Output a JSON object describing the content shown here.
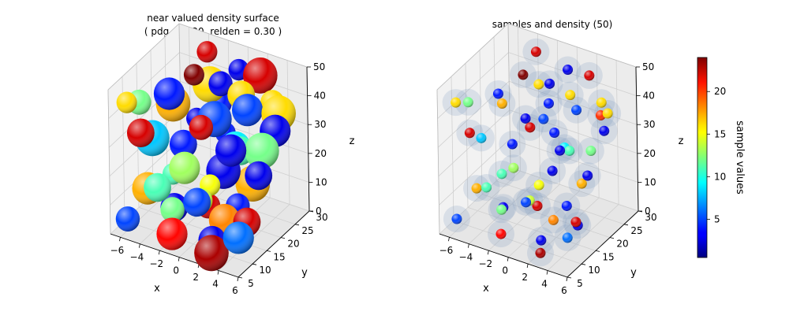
{
  "chart_data": [
    {
      "type": "scatter3d-surface",
      "title_line1": "near valued density surface",
      "title_line2": "( pdg = 1.20, relden = 0.30 )",
      "xlabel": "x",
      "ylabel": "y",
      "zlabel": "z",
      "xlim": [
        -7,
        6
      ],
      "ylim": [
        5,
        30
      ],
      "zlim": [
        0,
        50
      ],
      "xticks": [
        "−6",
        "−4",
        "−2",
        "0",
        "2",
        "4",
        "6"
      ],
      "yticks": [
        "5",
        "10",
        "15",
        "20",
        "25",
        "30"
      ],
      "zticks": [
        "0",
        "10",
        "20",
        "30",
        "40",
        "50"
      ],
      "grid": true
    },
    {
      "type": "scatter3d",
      "title": "samples and density (50)",
      "xlabel": "x",
      "ylabel": "y",
      "zlabel": "z",
      "xlim": [
        -7,
        6
      ],
      "ylim": [
        5,
        30
      ],
      "zlim": [
        0,
        50
      ],
      "xticks": [
        "−6",
        "−4",
        "−2",
        "0",
        "2",
        "4",
        "6"
      ],
      "yticks": [
        "5",
        "10",
        "15",
        "20",
        "25",
        "30"
      ],
      "zticks": [
        "0",
        "10",
        "20",
        "30",
        "40",
        "50"
      ],
      "grid": true,
      "colormap": "jet",
      "points": [
        {
          "x": -6.0,
          "y": 8,
          "z": 44,
          "v": 16
        },
        {
          "x": -6.5,
          "y": 14,
          "z": 38,
          "v": 12
        },
        {
          "x": -5.8,
          "y": 12,
          "z": 30,
          "v": 22
        },
        {
          "x": -4.0,
          "y": 16,
          "z": 42,
          "v": 4
        },
        {
          "x": -4.8,
          "y": 20,
          "z": 34,
          "v": 17
        },
        {
          "x": -3.2,
          "y": 22,
          "z": 44,
          "v": 24
        },
        {
          "x": -5.5,
          "y": 6,
          "z": 6,
          "v": 5
        },
        {
          "x": -3.0,
          "y": 8,
          "z": 18,
          "v": 11
        },
        {
          "x": -4.6,
          "y": 10,
          "z": 14,
          "v": 17
        },
        {
          "x": -6.4,
          "y": 18,
          "z": 22,
          "v": 8
        },
        {
          "x": -2.0,
          "y": 10,
          "z": 22,
          "v": 11
        },
        {
          "x": -1.5,
          "y": 8,
          "z": 12,
          "v": 12
        },
        {
          "x": -2.5,
          "y": 12,
          "z": 8,
          "v": 3
        },
        {
          "x": -1.0,
          "y": 6,
          "z": 6,
          "v": 21
        },
        {
          "x": 0.0,
          "y": 18,
          "z": 36,
          "v": 5
        },
        {
          "x": 0.5,
          "y": 20,
          "z": 30,
          "v": 4
        },
        {
          "x": -0.5,
          "y": 22,
          "z": 44,
          "v": 3
        },
        {
          "x": 1.0,
          "y": 24,
          "z": 40,
          "v": 16
        },
        {
          "x": 1.5,
          "y": 20,
          "z": 26,
          "v": 9
        },
        {
          "x": 2.0,
          "y": 14,
          "z": 24,
          "v": 3
        },
        {
          "x": 1.2,
          "y": 12,
          "z": 20,
          "v": 15
        },
        {
          "x": 0.8,
          "y": 10,
          "z": 16,
          "v": 14
        },
        {
          "x": 2.5,
          "y": 8,
          "z": 6,
          "v": 3
        },
        {
          "x": 3.2,
          "y": 10,
          "z": 12,
          "v": 18
        },
        {
          "x": 3.0,
          "y": 6,
          "z": 4,
          "v": 23
        },
        {
          "x": 4.5,
          "y": 14,
          "z": 8,
          "v": 3
        },
        {
          "x": 4.0,
          "y": 12,
          "z": 16,
          "v": 4
        },
        {
          "x": 5.0,
          "y": 16,
          "z": 24,
          "v": 3
        },
        {
          "x": 5.0,
          "y": 22,
          "z": 34,
          "v": 3
        },
        {
          "x": 4.8,
          "y": 24,
          "z": 38,
          "v": 16
        },
        {
          "x": 3.5,
          "y": 26,
          "z": 34,
          "v": 20
        },
        {
          "x": 3.0,
          "y": 28,
          "z": 36,
          "v": 16
        },
        {
          "x": 5.5,
          "y": 10,
          "z": 14,
          "v": 22
        },
        {
          "x": 5.2,
          "y": 8,
          "z": 10,
          "v": 6
        },
        {
          "x": 1.8,
          "y": 28,
          "z": 44,
          "v": 22
        },
        {
          "x": 0.2,
          "y": 26,
          "z": 46,
          "v": 3
        },
        {
          "x": -0.8,
          "y": 16,
          "z": 34,
          "v": 22
        },
        {
          "x": 2.6,
          "y": 18,
          "z": 28,
          "v": 11
        },
        {
          "x": 2.2,
          "y": 22,
          "z": 38,
          "v": 5
        },
        {
          "x": -2.2,
          "y": 24,
          "z": 40,
          "v": 16
        },
        {
          "x": -3.6,
          "y": 28,
          "z": 46,
          "v": 22
        },
        {
          "x": -1.8,
          "y": 26,
          "z": 32,
          "v": 4
        },
        {
          "x": 1.6,
          "y": 6,
          "z": 20,
          "v": 5
        },
        {
          "x": -0.2,
          "y": 8,
          "z": 28,
          "v": 13
        },
        {
          "x": 3.8,
          "y": 18,
          "z": 18,
          "v": 17
        },
        {
          "x": -4.2,
          "y": 26,
          "z": 24,
          "v": 3
        },
        {
          "x": 0.4,
          "y": 14,
          "z": 10,
          "v": 22
        },
        {
          "x": -5.0,
          "y": 24,
          "z": 16,
          "v": 4
        },
        {
          "x": 2.8,
          "y": 14,
          "z": 32,
          "v": 3
        },
        {
          "x": 4.2,
          "y": 20,
          "z": 28,
          "v": 12
        }
      ]
    }
  ],
  "colorbar": {
    "label": "sample values",
    "ticks": [
      "5",
      "10",
      "15",
      "20"
    ],
    "tick_values": [
      5,
      10,
      15,
      20
    ],
    "range": [
      0.5,
      24
    ]
  }
}
